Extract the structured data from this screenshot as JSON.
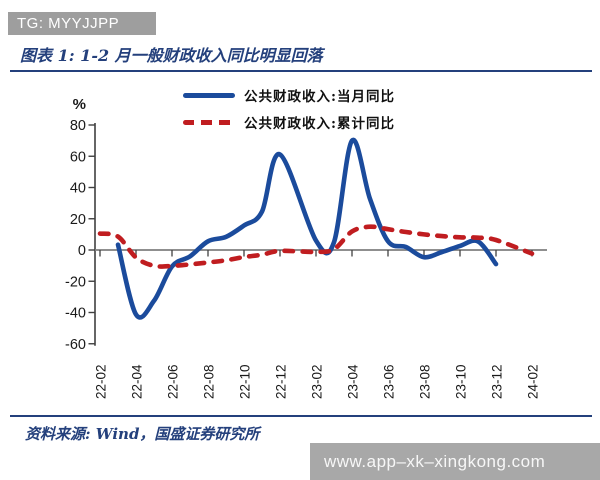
{
  "banner_top": {
    "text": "TG: MYYJJPP",
    "bg": "#9e9e9e",
    "fg": "#ffffff"
  },
  "title": "图表 1: 1-2 月一般财政收入同比明显回落",
  "legend": [
    {
      "label": "公共财政收入:当月同比",
      "color": "#1b4b9c",
      "style": "solid"
    },
    {
      "label": "公共财政收入:累计同比",
      "color": "#c01d20",
      "style": "dashed"
    }
  ],
  "footer": {
    "source": "资料来源: Wind，国盛证券研究所"
  },
  "banner_bottom": {
    "text": "www.app–xk–xingkong.com",
    "bg": "#a8a8a8",
    "fg": "#f7f7f7"
  },
  "chart_data": {
    "type": "line",
    "title": "图表 1: 1-2 月一般财政收入同比明显回落",
    "ylabel": "%",
    "ylim": [
      -60,
      80
    ],
    "ytick_step": 20,
    "grid": false,
    "legend_position": "top",
    "x_tick_labels": [
      "22-02",
      "22-04",
      "22-06",
      "22-08",
      "22-10",
      "22-12",
      "23-02",
      "23-04",
      "23-06",
      "23-08",
      "23-10",
      "23-12",
      "24-02"
    ],
    "series": [
      {
        "name": "公共财政收入:当月同比",
        "color": "#1b4b9c",
        "style": "solid",
        "points": [
          [
            "22-03",
            3.4
          ],
          [
            "22-04",
            -41.3
          ],
          [
            "22-05",
            -32.5
          ],
          [
            "22-06",
            -10.5
          ],
          [
            "22-07",
            -4.1
          ],
          [
            "22-08",
            5.6
          ],
          [
            "22-09",
            8.4
          ],
          [
            "22-10",
            15.7
          ],
          [
            "22-11",
            24.6
          ],
          [
            "22-12",
            61.1
          ],
          [
            "23-02",
            6.0
          ],
          [
            "23-03",
            5.0
          ],
          [
            "23-04",
            70.0
          ],
          [
            "23-05",
            32.7
          ],
          [
            "23-06",
            5.6
          ],
          [
            "23-07",
            1.9
          ],
          [
            "23-08",
            -4.6
          ],
          [
            "23-09",
            -1.3
          ],
          [
            "23-10",
            2.6
          ],
          [
            "23-11",
            5.5
          ],
          [
            "23-12",
            -9.0
          ]
        ]
      },
      {
        "name": "公共财政收入:累计同比",
        "color": "#c01d20",
        "style": "dashed",
        "points": [
          [
            "22-02",
            10.5
          ],
          [
            "22-03",
            8.6
          ],
          [
            "22-04",
            -4.8
          ],
          [
            "22-05",
            -10.1
          ],
          [
            "22-06",
            -10.2
          ],
          [
            "22-07",
            -9.2
          ],
          [
            "22-08",
            -8.0
          ],
          [
            "22-09",
            -6.6
          ],
          [
            "22-10",
            -4.5
          ],
          [
            "22-11",
            -3.0
          ],
          [
            "22-12",
            -0.6
          ],
          [
            "23-02",
            -1.2
          ],
          [
            "23-03",
            0.5
          ],
          [
            "23-04",
            11.9
          ],
          [
            "23-05",
            14.9
          ],
          [
            "23-06",
            13.3
          ],
          [
            "23-07",
            11.5
          ],
          [
            "23-08",
            10.0
          ],
          [
            "23-09",
            8.9
          ],
          [
            "23-10",
            8.1
          ],
          [
            "23-11",
            7.9
          ],
          [
            "23-12",
            6.4
          ],
          [
            "24-02",
            -2.3
          ]
        ]
      }
    ],
    "colors": {
      "axis": "#404040",
      "zero_line": "#7f7f7f",
      "tick_text": "#1a1a1a"
    }
  }
}
